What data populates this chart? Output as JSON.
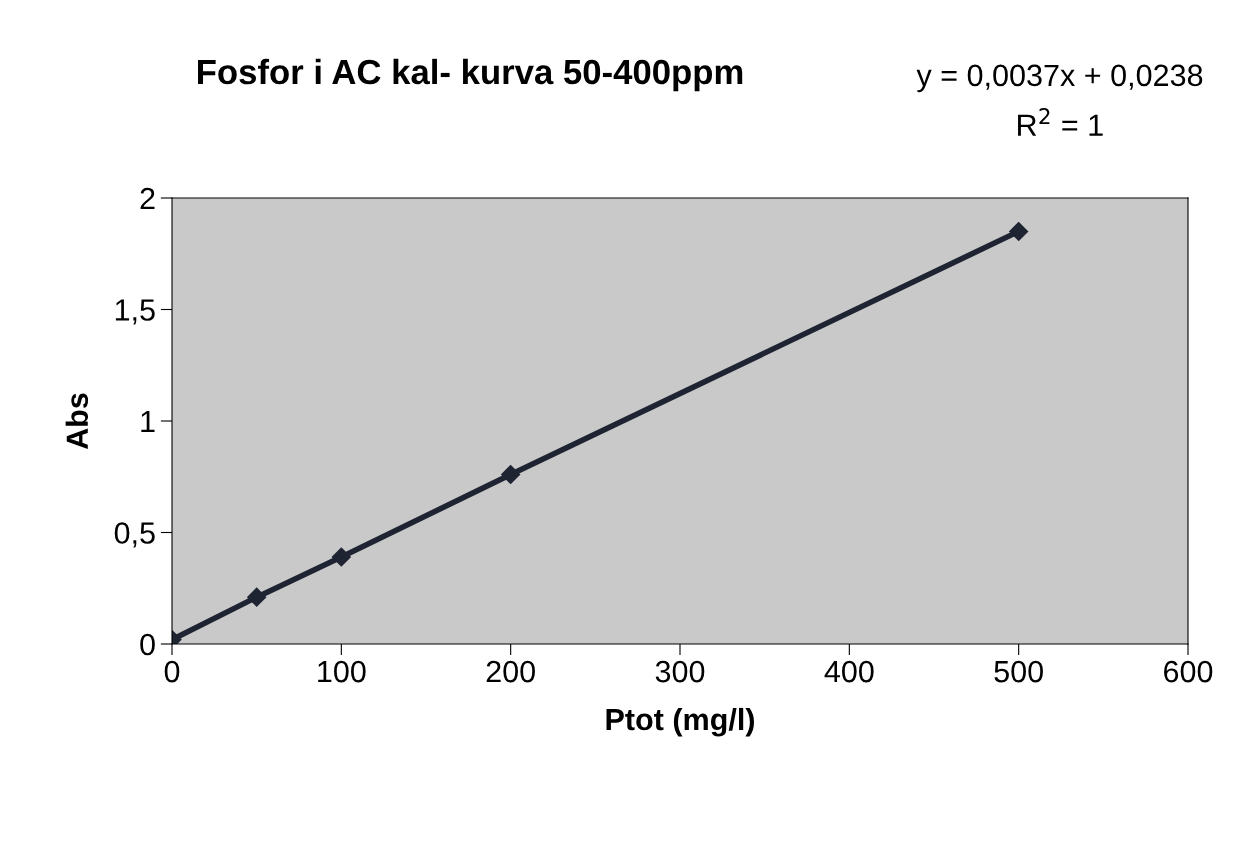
{
  "chart_data": {
    "type": "line",
    "title": "Fosfor i AC kal- kurva 50-400ppm",
    "xlabel": "Ptot (mg/l)",
    "ylabel": "Abs",
    "annotations": [
      "y = 0,0037x + 0,0238",
      "R$^{2}$ = 1"
    ],
    "x": [
      0,
      50,
      100,
      200,
      500
    ],
    "series": [
      {
        "color": "#1f2433",
        "values": [
          0.02,
          0.21,
          0.39,
          0.76,
          1.85
        ]
      }
    ],
    "xlim": [
      0,
      600
    ],
    "xticks": [
      0,
      100,
      200,
      300,
      400,
      500,
      600
    ],
    "ylim": [
      0,
      2
    ],
    "yticks": [
      0,
      {
        "value": 0.5,
        "label": "0,5"
      },
      1,
      {
        "value": 1.5,
        "label": "1,5"
      },
      2
    ],
    "marker": "diamond",
    "line_style": "solid",
    "grid": false,
    "legend": false
  }
}
